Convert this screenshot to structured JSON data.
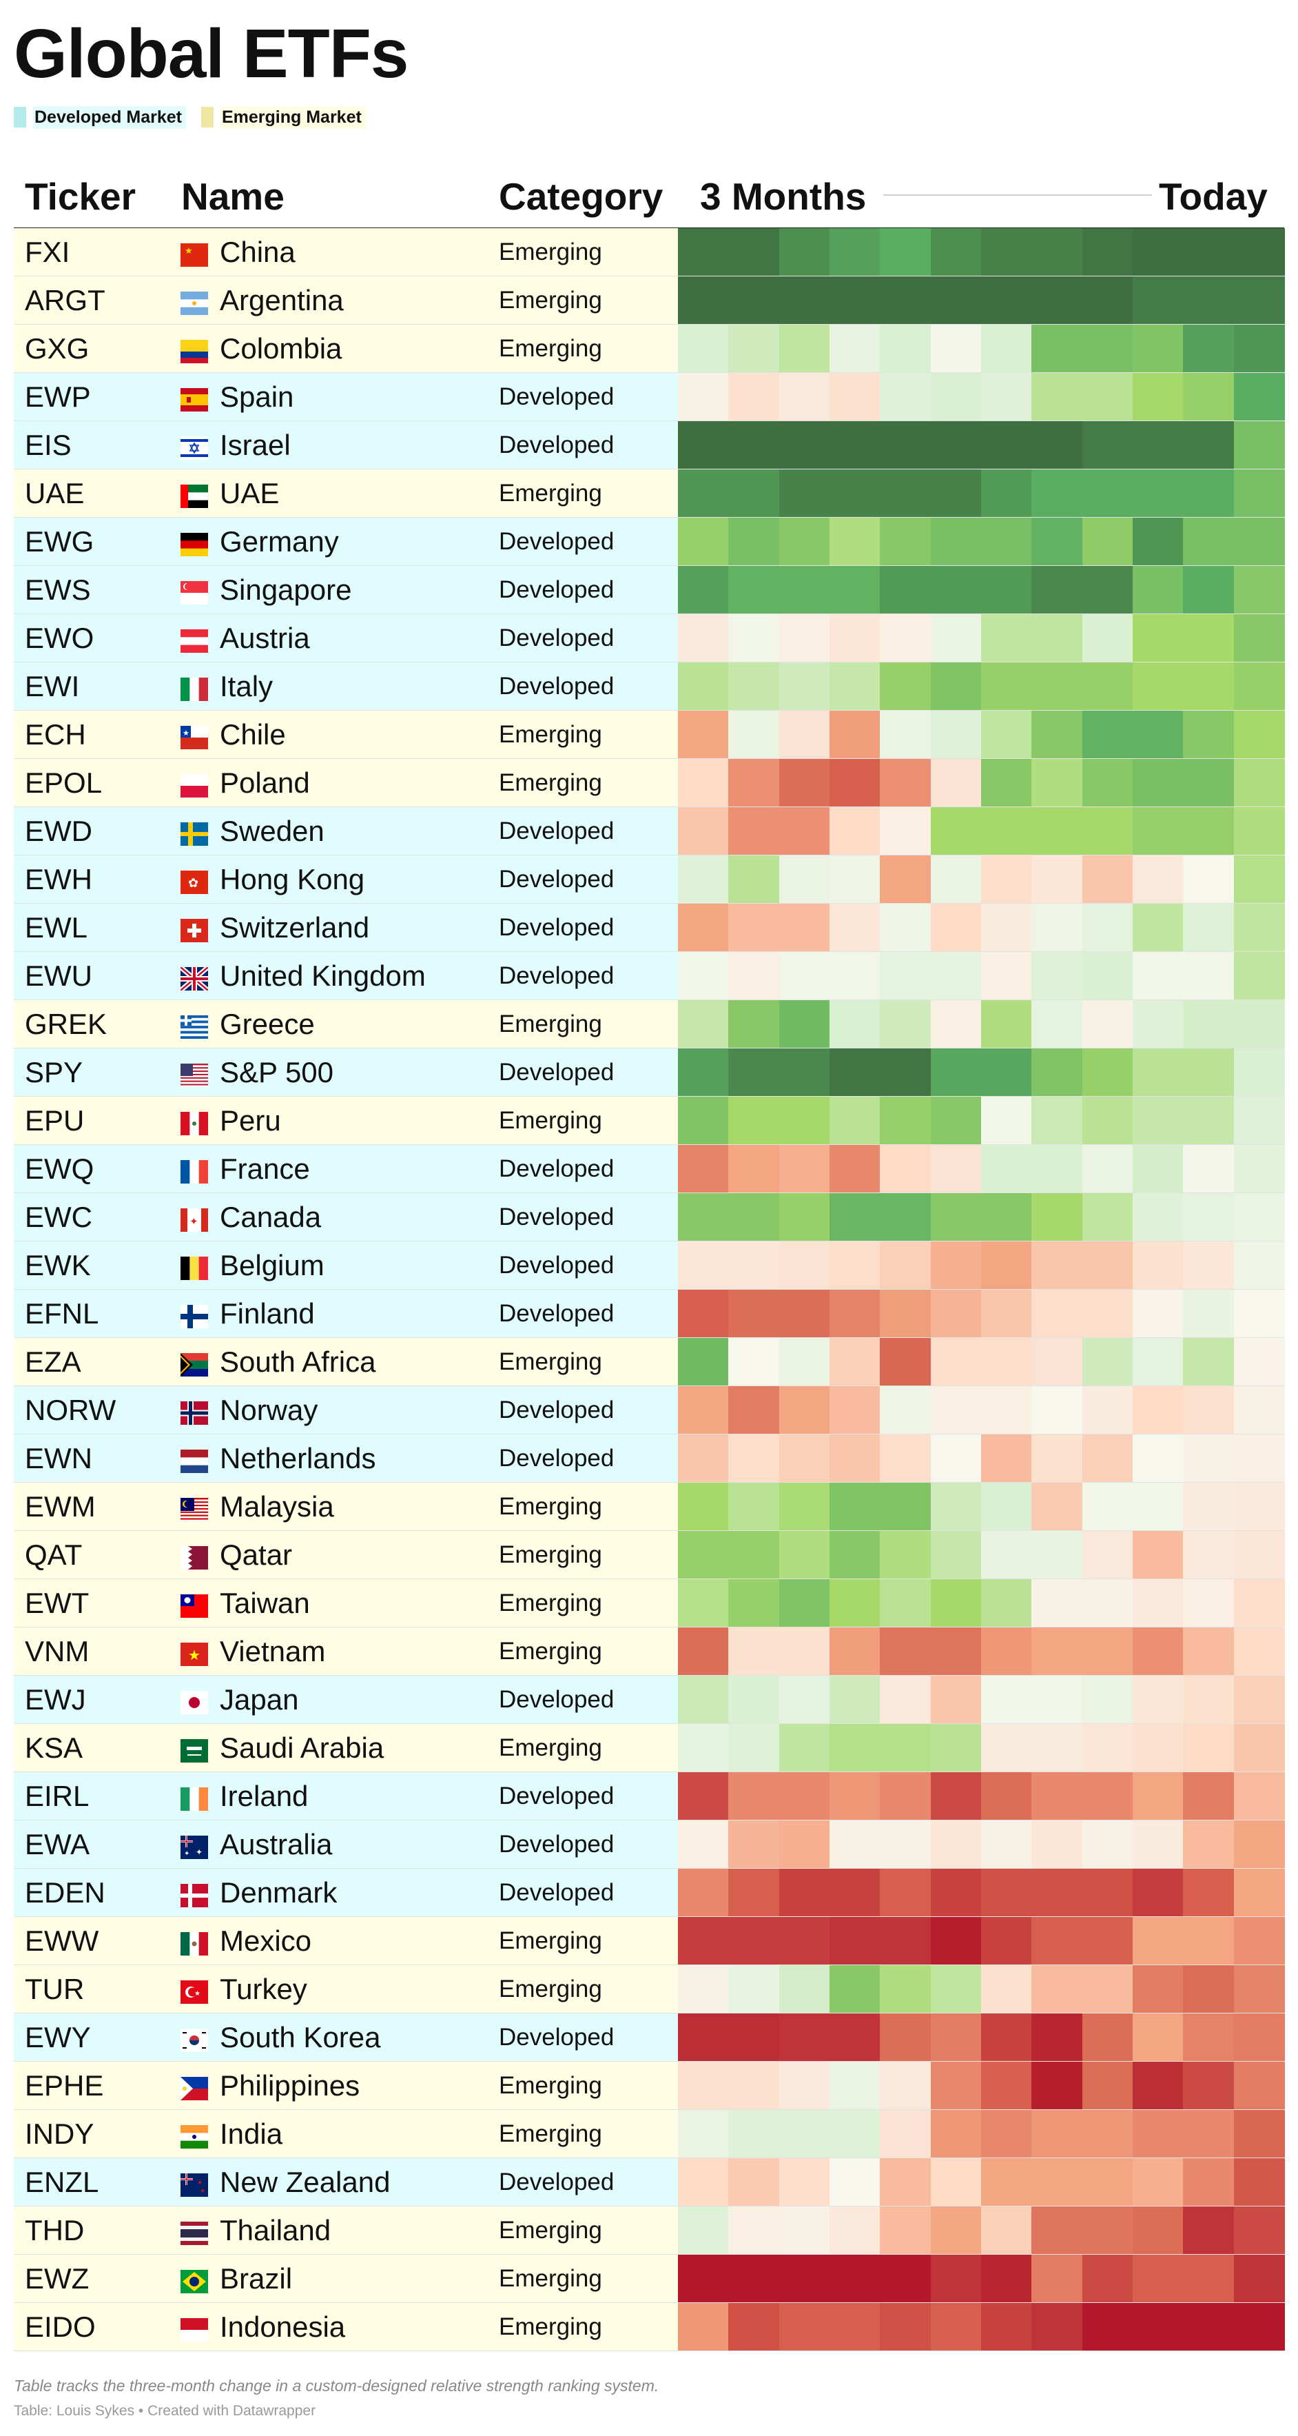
{
  "title": "Global ETFs",
  "legend": [
    {
      "label": "Developed Market",
      "color": "#b3eaea",
      "bg": "#e3fbfb"
    },
    {
      "label": "Emerging Market",
      "color": "#efe7a4",
      "bg": "#fefce3"
    }
  ],
  "headers": {
    "ticker": "Ticker",
    "name": "Name",
    "category": "Category",
    "period_start": "3 Months",
    "period_end": "Today"
  },
  "row_colors": {
    "Developed": "#e0fcfc",
    "Emerging": "#fffde4"
  },
  "heat_scale": {
    "min": -4,
    "max": 4,
    "stops": [
      "#b2172b",
      "#d6604d",
      "#f4a582",
      "#fddbc7",
      "#f7f7ee",
      "#d9f0d3",
      "#a6d96a",
      "#5aae61",
      "#3f6f41"
    ]
  },
  "chart_data": {
    "type": "heatmap",
    "x": [
      "3 Months",
      "",
      "",
      "",
      "",
      "",
      "",
      "",
      "",
      "",
      "",
      "Today"
    ],
    "rows": [
      {
        "ticker": "FXI",
        "name": "China",
        "category": "Emerging",
        "flag": "cn",
        "values": [
          3.9,
          3.9,
          3.5,
          3.2,
          3.0,
          3.5,
          3.7,
          3.7,
          3.9,
          4,
          4,
          4
        ]
      },
      {
        "ticker": "ARGT",
        "name": "Argentina",
        "category": "Emerging",
        "flag": "ar",
        "values": [
          4,
          4,
          4,
          4,
          4,
          4,
          4,
          4,
          4,
          3.8,
          3.8,
          3.8
        ]
      },
      {
        "ticker": "GXG",
        "name": "Colombia",
        "category": "Emerging",
        "flag": "co",
        "values": [
          1.0,
          1.2,
          1.5,
          0.5,
          1.0,
          0.1,
          1.0,
          2.6,
          2.6,
          2.5,
          3.2,
          3.4
        ]
      },
      {
        "ticker": "EWP",
        "name": "Spain",
        "category": "Developed",
        "flag": "es",
        "values": [
          -0.2,
          -0.8,
          -0.5,
          -0.8,
          0.8,
          1.0,
          0.8,
          1.6,
          1.6,
          2.0,
          2.2,
          3.0
        ]
      },
      {
        "ticker": "EIS",
        "name": "Israel",
        "category": "Developed",
        "flag": "il",
        "values": [
          4,
          4,
          4,
          4,
          4,
          4,
          4,
          4,
          3.8,
          3.8,
          3.8,
          2.6
        ]
      },
      {
        "ticker": "UAE",
        "name": "UAE",
        "category": "Emerging",
        "flag": "ae",
        "values": [
          3.4,
          3.4,
          3.7,
          3.7,
          3.7,
          3.7,
          3.3,
          3.0,
          3.0,
          3.0,
          3.0,
          2.6
        ]
      },
      {
        "ticker": "EWG",
        "name": "Germany",
        "category": "Developed",
        "flag": "de",
        "values": [
          2.2,
          2.6,
          2.4,
          1.8,
          2.4,
          2.6,
          2.6,
          2.9,
          2.3,
          3.4,
          2.6,
          2.6
        ]
      },
      {
        "ticker": "EWS",
        "name": "Singapore",
        "category": "Developed",
        "flag": "sg",
        "values": [
          3.2,
          2.9,
          2.9,
          2.9,
          3.3,
          3.3,
          3.3,
          3.6,
          3.6,
          2.6,
          3.0,
          2.4
        ]
      },
      {
        "ticker": "EWO",
        "name": "Austria",
        "category": "Developed",
        "flag": "at",
        "values": [
          -0.5,
          0.2,
          -0.3,
          -0.6,
          -0.3,
          0.4,
          1.5,
          1.5,
          1.0,
          2.0,
          2.0,
          2.4
        ]
      },
      {
        "ticker": "EWI",
        "name": "Italy",
        "category": "Developed",
        "flag": "it",
        "values": [
          1.6,
          1.4,
          1.2,
          1.4,
          2.2,
          2.5,
          2.2,
          2.2,
          2.2,
          2.0,
          2.0,
          2.2
        ]
      },
      {
        "ticker": "ECH",
        "name": "Chile",
        "category": "Emerging",
        "flag": "cl",
        "values": [
          -2.0,
          0.4,
          -0.7,
          -2.1,
          0.4,
          0.8,
          1.5,
          2.4,
          2.9,
          2.9,
          2.4,
          2.0
        ]
      },
      {
        "ticker": "EPOL",
        "name": "Poland",
        "category": "Emerging",
        "flag": "pl",
        "values": [
          -1.0,
          -2.3,
          -2.8,
          -3.0,
          -2.3,
          -0.7,
          2.4,
          1.8,
          2.4,
          2.6,
          2.6,
          1.8
        ]
      },
      {
        "ticker": "EWD",
        "name": "Sweden",
        "category": "Developed",
        "flag": "se",
        "values": [
          -1.4,
          -2.3,
          -2.3,
          -1.0,
          -0.3,
          2.0,
          2.0,
          2.0,
          2.0,
          2.2,
          2.2,
          1.8
        ]
      },
      {
        "ticker": "EWH",
        "name": "Hong Kong",
        "category": "Developed",
        "flag": "hk",
        "values": [
          0.8,
          1.6,
          0.4,
          0.3,
          -2.0,
          0.4,
          -0.9,
          -0.6,
          -1.4,
          -0.5,
          0,
          1.7
        ]
      },
      {
        "ticker": "EWL",
        "name": "Switzerland",
        "category": "Developed",
        "flag": "ch",
        "values": [
          -2.0,
          -1.6,
          -1.6,
          -0.6,
          0.3,
          -1.0,
          -0.4,
          0.3,
          0.6,
          1.5,
          0.9,
          1.5
        ]
      },
      {
        "ticker": "EWU",
        "name": "United Kingdom",
        "category": "Developed",
        "flag": "gb",
        "values": [
          0.2,
          -0.3,
          0.2,
          0.2,
          0.6,
          0.6,
          -0.3,
          0.9,
          1.0,
          0.2,
          0.2,
          1.5
        ]
      },
      {
        "ticker": "GREK",
        "name": "Greece",
        "category": "Emerging",
        "flag": "gr",
        "values": [
          1.4,
          2.4,
          2.7,
          1.0,
          1.2,
          -0.3,
          1.8,
          0.6,
          -0.2,
          0.8,
          1.1,
          1.1
        ]
      },
      {
        "ticker": "SPY",
        "name": "S&P 500",
        "category": "Developed",
        "flag": "us",
        "values": [
          3.2,
          3.6,
          3.6,
          3.9,
          3.9,
          3.1,
          3.1,
          2.5,
          2.2,
          1.6,
          1.6,
          1.0
        ]
      },
      {
        "ticker": "EPU",
        "name": "Peru",
        "category": "Emerging",
        "flag": "pe",
        "values": [
          2.5,
          2.0,
          2.0,
          1.6,
          2.2,
          2.4,
          0.2,
          1.3,
          1.6,
          1.4,
          1.4,
          0.9
        ]
      },
      {
        "ticker": "EWQ",
        "name": "France",
        "category": "Developed",
        "flag": "fr",
        "values": [
          -2.5,
          -2.0,
          -1.8,
          -2.4,
          -1.0,
          -0.7,
          1.0,
          1.0,
          0.4,
          1.1,
          0.1,
          0.7
        ]
      },
      {
        "ticker": "EWC",
        "name": "Canada",
        "category": "Developed",
        "flag": "ca",
        "values": [
          2.4,
          2.4,
          2.2,
          2.8,
          2.8,
          2.4,
          2.4,
          2.0,
          1.5,
          0.8,
          0.6,
          0.4
        ]
      },
      {
        "ticker": "EWK",
        "name": "Belgium",
        "category": "Developed",
        "flag": "be",
        "values": [
          -0.6,
          -0.6,
          -0.7,
          -0.9,
          -1.2,
          -1.8,
          -2.0,
          -1.4,
          -1.4,
          -0.8,
          -0.6,
          0.3
        ]
      },
      {
        "ticker": "EFNL",
        "name": "Finland",
        "category": "Developed",
        "flag": "fi",
        "values": [
          -3.0,
          -2.8,
          -2.8,
          -2.5,
          -2.1,
          -1.7,
          -1.4,
          -0.9,
          -0.9,
          -0.1,
          0.5,
          0
        ]
      },
      {
        "ticker": "EZA",
        "name": "South Africa",
        "category": "Emerging",
        "flag": "za",
        "values": [
          2.7,
          0,
          0.4,
          -1.2,
          -2.9,
          -0.9,
          -0.9,
          -0.7,
          1.2,
          0.6,
          1.4,
          -0.1
        ]
      },
      {
        "ticker": "NORW",
        "name": "Norway",
        "category": "Developed",
        "flag": "no",
        "values": [
          -2.0,
          -2.6,
          -2.0,
          -1.6,
          0.3,
          -0.3,
          -0.3,
          0,
          -0.4,
          -1.0,
          -0.8,
          -0.2
        ]
      },
      {
        "ticker": "EWN",
        "name": "Netherlands",
        "category": "Developed",
        "flag": "nl",
        "values": [
          -1.4,
          -0.9,
          -1.2,
          -1.4,
          -0.9,
          0,
          -1.6,
          -0.8,
          -1.2,
          0,
          -0.2,
          -0.3
        ]
      },
      {
        "ticker": "EWM",
        "name": "Malaysia",
        "category": "Emerging",
        "flag": "my",
        "values": [
          2.0,
          1.6,
          1.9,
          2.5,
          2.5,
          1.2,
          1.0,
          -1.3,
          0.2,
          0.2,
          -0.4,
          -0.5
        ]
      },
      {
        "ticker": "QAT",
        "name": "Qatar",
        "category": "Emerging",
        "flag": "qa",
        "values": [
          2.2,
          2.2,
          1.8,
          2.4,
          1.8,
          1.4,
          0.5,
          0.5,
          -0.5,
          -1.6,
          -0.5,
          -0.6
        ]
      },
      {
        "ticker": "EWT",
        "name": "Taiwan",
        "category": "Emerging",
        "flag": "tw",
        "values": [
          1.7,
          2.2,
          2.5,
          2.0,
          1.6,
          2.0,
          1.6,
          -0.2,
          -0.2,
          -0.5,
          -0.3,
          -0.9
        ]
      },
      {
        "ticker": "VNM",
        "name": "Vietnam",
        "category": "Emerging",
        "flag": "vn",
        "values": [
          -2.8,
          -0.8,
          -0.8,
          -2.1,
          -2.7,
          -2.7,
          -2.2,
          -2.0,
          -2.0,
          -2.3,
          -1.6,
          -1.0
        ]
      },
      {
        "ticker": "EWJ",
        "name": "Japan",
        "category": "Developed",
        "flag": "jp",
        "values": [
          1.3,
          1.0,
          0.6,
          1.2,
          -0.5,
          -1.4,
          0.2,
          0.2,
          0.4,
          -0.6,
          -0.8,
          -1.2
        ]
      },
      {
        "ticker": "KSA",
        "name": "Saudi Arabia",
        "category": "Emerging",
        "flag": "sa",
        "values": [
          0.6,
          0.9,
          1.5,
          1.7,
          1.7,
          1.6,
          -0.4,
          -0.4,
          -0.6,
          -0.8,
          -1.0,
          -1.4
        ]
      },
      {
        "ticker": "EIRL",
        "name": "Ireland",
        "category": "Developed",
        "flag": "ie",
        "values": [
          -3.3,
          -2.4,
          -2.4,
          -2.2,
          -2.4,
          -3.3,
          -2.8,
          -2.4,
          -2.4,
          -2.0,
          -2.6,
          -1.6
        ]
      },
      {
        "ticker": "EWA",
        "name": "Australia",
        "category": "Developed",
        "flag": "au",
        "values": [
          -0.3,
          -1.7,
          -1.8,
          -0.2,
          -0.2,
          -0.6,
          -0.2,
          -0.6,
          -0.2,
          -0.4,
          -1.6,
          -2.0
        ]
      },
      {
        "ticker": "EDEN",
        "name": "Denmark",
        "category": "Developed",
        "flag": "dk",
        "values": [
          -2.4,
          -3.0,
          -3.4,
          -3.4,
          -3.0,
          -3.4,
          -3.2,
          -3.2,
          -3.2,
          -3.5,
          -3.0,
          -2.0
        ]
      },
      {
        "ticker": "EWW",
        "name": "Mexico",
        "category": "Emerging",
        "flag": "mx",
        "values": [
          -3.5,
          -3.5,
          -3.5,
          -3.6,
          -3.6,
          -3.9,
          -3.4,
          -3.0,
          -3.0,
          -2.0,
          -2.0,
          -2.3
        ]
      },
      {
        "ticker": "TUR",
        "name": "Turkey",
        "category": "Emerging",
        "flag": "tr",
        "values": [
          -0.2,
          0.5,
          1.1,
          2.4,
          1.8,
          1.5,
          -0.8,
          -1.6,
          -1.6,
          -2.6,
          -2.8,
          -2.5
        ]
      },
      {
        "ticker": "EWY",
        "name": "South Korea",
        "category": "Developed",
        "flag": "kr",
        "values": [
          -3.7,
          -3.7,
          -3.6,
          -3.6,
          -2.8,
          -2.6,
          -3.4,
          -3.8,
          -2.8,
          -2.0,
          -2.5,
          -2.6
        ]
      },
      {
        "ticker": "EPHE",
        "name": "Philippines",
        "category": "Emerging",
        "flag": "ph",
        "values": [
          -0.8,
          -0.8,
          -0.5,
          0.4,
          -0.5,
          -2.4,
          -3.0,
          -3.9,
          -2.8,
          -3.7,
          -3.3,
          -2.6
        ]
      },
      {
        "ticker": "INDY",
        "name": "India",
        "category": "Emerging",
        "flag": "in",
        "values": [
          0.4,
          0.8,
          0.9,
          0.9,
          -0.7,
          -2.2,
          -2.4,
          -2.2,
          -2.2,
          -2.4,
          -2.4,
          -2.9
        ]
      },
      {
        "ticker": "ENZL",
        "name": "New Zealand",
        "category": "Developed",
        "flag": "nz",
        "values": [
          -1.0,
          -1.3,
          -0.9,
          0,
          -1.6,
          -1.0,
          -2.0,
          -2.0,
          -2.0,
          -1.8,
          -2.4,
          -3.1
        ]
      },
      {
        "ticker": "THD",
        "name": "Thailand",
        "category": "Emerging",
        "flag": "th",
        "values": [
          0.9,
          -0.3,
          -0.2,
          -0.5,
          -1.6,
          -2.0,
          -1.2,
          -2.7,
          -2.7,
          -2.8,
          -3.6,
          -3.3
        ]
      },
      {
        "ticker": "EWZ",
        "name": "Brazil",
        "category": "Emerging",
        "flag": "br",
        "values": [
          -4,
          -4,
          -4,
          -4,
          -4,
          -3.6,
          -3.8,
          -2.6,
          -3.3,
          -3.0,
          -3.0,
          -3.6
        ]
      },
      {
        "ticker": "EIDO",
        "name": "Indonesia",
        "category": "Emerging",
        "flag": "id",
        "values": [
          -2.2,
          -3.2,
          -3.0,
          -3.0,
          -3.2,
          -3.0,
          -3.4,
          -3.6,
          -4,
          -4,
          -4,
          -4
        ]
      }
    ]
  },
  "footnote": "Table tracks the three-month change in a custom-designed relative strength ranking system.",
  "credit": "Table: Louis Sykes • Created with Datawrapper"
}
